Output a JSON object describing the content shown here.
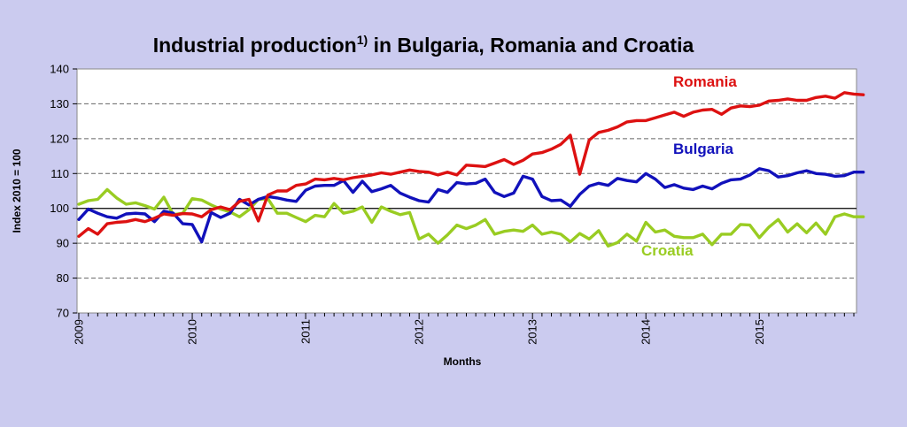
{
  "chart_data": {
    "type": "line",
    "title_main": "Industrial production",
    "title_sup": "1)",
    "title_rest": " in Bulgaria, Romania and Croatia",
    "xlabel": "Months",
    "ylabel": "Index 2010 = 100",
    "ylim": [
      70,
      140
    ],
    "yticks": [
      70,
      80,
      90,
      100,
      110,
      120,
      130,
      140
    ],
    "reference_line": 100,
    "x_start": "2009-01",
    "x_end": "2015-11",
    "xticks": [
      {
        "label": "2009",
        "date": "2009-01"
      },
      {
        "label": "2010",
        "date": "2010-01"
      },
      {
        "label": "2011",
        "date": "2011-01"
      },
      {
        "label": "2012",
        "date": "2012-01"
      },
      {
        "label": "2013",
        "date": "2013-01"
      },
      {
        "label": "2014",
        "date": "2014-01"
      },
      {
        "label": "2015",
        "date": "2015-01"
      }
    ],
    "grid": "horizontal dashed",
    "colors": {
      "background": "#cbcbef",
      "plot": "#ffffff"
    },
    "series": [
      {
        "name": "Romania",
        "color": "#dd1111",
        "values": [
          92,
          94.2,
          92.6,
          95.6,
          96,
          96.2,
          96.8,
          96.2,
          97.2,
          98.4,
          98,
          98.5,
          98.4,
          97.6,
          99.6,
          100.4,
          99.6,
          102,
          102.6,
          96.4,
          103.8,
          105,
          105,
          106.6,
          107,
          108.4,
          108.2,
          108.6,
          108.2,
          108.8,
          109.2,
          109.6,
          110.2,
          109.8,
          110.4,
          111,
          110.6,
          110.4,
          109.6,
          110.4,
          109.6,
          112.4,
          112.2,
          112,
          113,
          114,
          112.6,
          113.8,
          115.6,
          116,
          117,
          118.4,
          121,
          109.8,
          119.6,
          121.8,
          122.4,
          123.4,
          124.8,
          125.2,
          125.2,
          126,
          126.8,
          127.6,
          126.4,
          127.6,
          128.2,
          128.4,
          127,
          128.8,
          129.4,
          129.2,
          129.6,
          130.8,
          131,
          131.4,
          131,
          131,
          131.8,
          132.2,
          131.6,
          133.2,
          132.8,
          132.6
        ]
      },
      {
        "name": "Bulgaria",
        "color": "#1111bb",
        "values": [
          96.8,
          99.8,
          98.6,
          97.6,
          97.2,
          98.4,
          98.6,
          98.4,
          96.2,
          99.2,
          98.6,
          95.6,
          95.4,
          90.4,
          98.8,
          97.4,
          98.6,
          102.6,
          101,
          102.6,
          103.4,
          103,
          102.4,
          102,
          105.2,
          106.4,
          106.6,
          106.6,
          108,
          104.6,
          107.8,
          104.8,
          105.6,
          106.6,
          104.4,
          103.2,
          102.2,
          101.8,
          105.4,
          104.6,
          107.4,
          107,
          107.2,
          108.4,
          104.6,
          103.4,
          104.4,
          109.2,
          108.4,
          103.4,
          102.2,
          102.4,
          100.6,
          104,
          106.4,
          107.2,
          106.6,
          108.6,
          108,
          107.6,
          110,
          108.4,
          106,
          106.8,
          105.8,
          105.4,
          106.4,
          105.6,
          107.2,
          108.2,
          108.4,
          109.6,
          111.4,
          110.8,
          109,
          109.4,
          110.2,
          110.8,
          110,
          109.8,
          109.2,
          109.4,
          110.4,
          110.4
        ]
      },
      {
        "name": "Croatia",
        "color": "#99cc22",
        "values": [
          101.2,
          102.2,
          102.6,
          105.4,
          103,
          101.2,
          101.6,
          100.8,
          99.8,
          103.2,
          98.2,
          98.6,
          102.8,
          102.4,
          101,
          99.8,
          99,
          97.6,
          99.6,
          102.6,
          102.8,
          98.6,
          98.6,
          97.4,
          96.2,
          98,
          97.6,
          101.4,
          98.6,
          99.2,
          100.4,
          96,
          100.4,
          99.2,
          98.2,
          98.8,
          91.2,
          92.6,
          90,
          92.4,
          95.2,
          94.2,
          95.2,
          96.8,
          92.6,
          93.4,
          93.8,
          93.4,
          95.2,
          92.6,
          93.2,
          92.6,
          90.4,
          92.8,
          91.2,
          93.6,
          89.2,
          90.2,
          92.6,
          90.6,
          96,
          93.2,
          93.8,
          92,
          91.6,
          91.6,
          92.6,
          89.6,
          92.6,
          92.6,
          95.4,
          95.2,
          91.6,
          94.6,
          96.8,
          93.2,
          95.6,
          93,
          95.8,
          92.6,
          97.6,
          98.4,
          97.6,
          97.6
        ]
      }
    ]
  }
}
